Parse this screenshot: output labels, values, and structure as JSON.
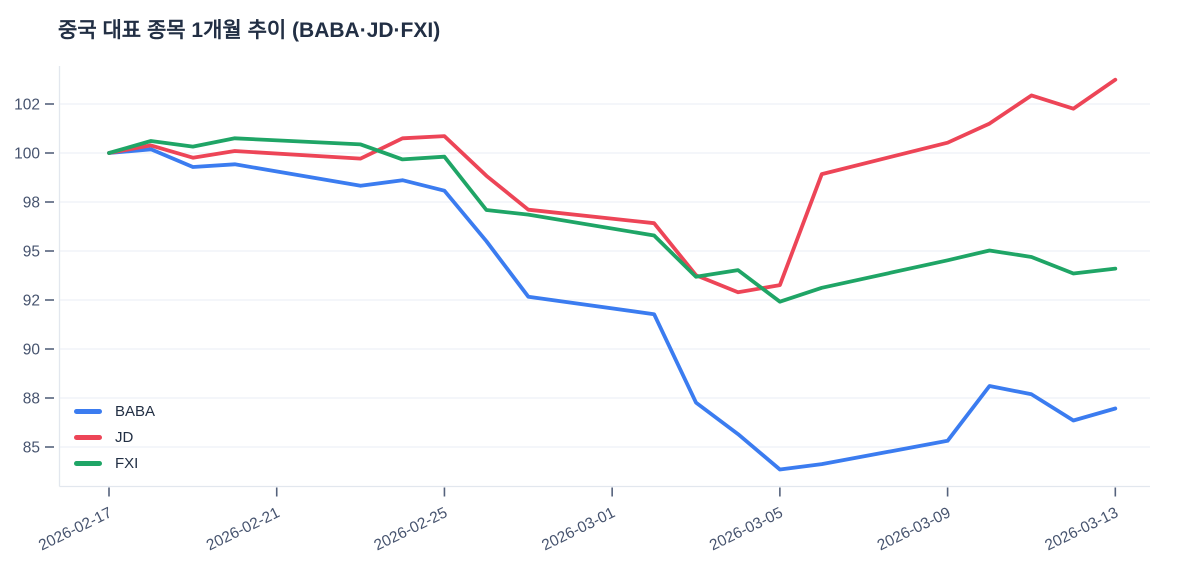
{
  "header": {
    "title": "중국 대표 종목 1개월 추이 (BABA·JD·FXI)"
  },
  "legend": {
    "items": [
      {
        "label": "BABA",
        "color": "#3b7cf0"
      },
      {
        "label": "JD",
        "color": "#ed4557"
      },
      {
        "label": "FXI",
        "color": "#1fa566"
      }
    ],
    "position": "bottom-left-inside"
  },
  "colors": {
    "title_text": "#222f44",
    "axis_text": "#46536e",
    "tick_mark": "#55627c",
    "gridline": "#eef1f6",
    "axis_line": "#e2e7ee",
    "background": "#ffffff"
  },
  "chart_data": {
    "type": "line",
    "title": "중국 대표 종목 1개월 추이 (BABA·JD·FXI)",
    "x": [
      "2026-02-17",
      "2026-02-18",
      "2026-02-19",
      "2026-02-20",
      "2026-02-23",
      "2026-02-24",
      "2026-02-25",
      "2026-02-26",
      "2026-02-27",
      "2026-03-02",
      "2026-03-03",
      "2026-03-04",
      "2026-03-05",
      "2026-03-06",
      "2026-03-09",
      "2026-03-10",
      "2026-03-11",
      "2026-03-12",
      "2026-03-13"
    ],
    "series": [
      {
        "name": "BABA",
        "color": "#3b7cf0",
        "values": [
          100.0,
          100.15,
          99.43,
          99.54,
          98.66,
          98.89,
          98.46,
          95.6,
          92.2,
          91.42,
          87.72,
          85.79,
          83.62,
          83.95,
          85.38,
          88.49,
          88.15,
          86.62,
          87.36
        ]
      },
      {
        "name": "JD",
        "color": "#ed4557",
        "values": [
          100.0,
          100.31,
          99.81,
          100.08,
          99.77,
          100.6,
          100.69,
          99.07,
          97.53,
          96.7,
          93.52,
          92.47,
          92.91,
          99.14,
          100.42,
          101.2,
          102.35,
          101.81,
          102.99
        ]
      },
      {
        "name": "FXI",
        "color": "#1fa566",
        "values": [
          100.0,
          100.49,
          100.26,
          100.6,
          100.35,
          99.74,
          99.85,
          97.51,
          97.23,
          95.95,
          93.42,
          93.83,
          91.93,
          92.75,
          94.43,
          95.03,
          94.63,
          93.62,
          93.92
        ]
      }
    ],
    "y_axis": {
      "ticks": [
        102,
        100,
        98,
        95,
        92,
        90,
        88,
        85
      ],
      "tick_layout": "equal-spacing"
    },
    "x_axis": {
      "tick_labels": [
        "2026-02-17",
        "2026-02-21",
        "2026-02-25",
        "2026-03-01",
        "2026-03-05",
        "2026-03-09",
        "2026-03-13"
      ],
      "tick_angle": -26
    },
    "grid": true,
    "legend_position": "bottom-left-inside"
  }
}
